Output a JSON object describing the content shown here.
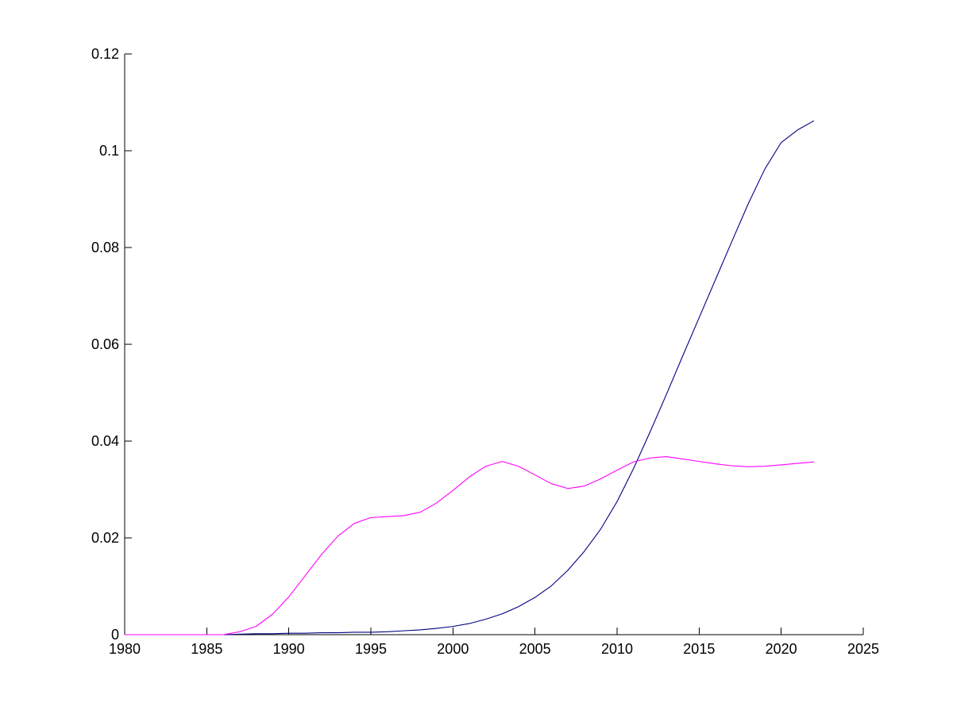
{
  "chart_data": {
    "type": "line",
    "title": "",
    "xlabel": "",
    "ylabel": "",
    "xlim": [
      1980,
      2025
    ],
    "ylim": [
      0,
      0.12
    ],
    "x_ticks": [
      1980,
      1985,
      1990,
      1995,
      2000,
      2005,
      2010,
      2015,
      2020,
      2025
    ],
    "y_ticks": [
      0,
      0.02,
      0.04,
      0.06,
      0.08,
      0.1,
      0.12
    ],
    "x_tick_labels": [
      "1980",
      "1985",
      "1990",
      "1995",
      "2000",
      "2005",
      "2010",
      "2015",
      "2020",
      "2025"
    ],
    "y_tick_labels": [
      "0",
      "0.02",
      "0.04",
      "0.06",
      "0.08",
      "0.1",
      "0.12"
    ],
    "grid": false,
    "legend": "none",
    "x": [
      1980,
      1981,
      1982,
      1983,
      1984,
      1985,
      1986,
      1987,
      1988,
      1989,
      1990,
      1991,
      1992,
      1993,
      1994,
      1995,
      1996,
      1997,
      1998,
      1999,
      2000,
      2001,
      2002,
      2003,
      2004,
      2005,
      2006,
      2007,
      2008,
      2009,
      2010,
      2011,
      2012,
      2013,
      2014,
      2015,
      2016,
      2017,
      2018,
      2019,
      2020,
      2021,
      2022
    ],
    "series": [
      {
        "color": "#000080",
        "values": [
          0,
          0,
          0,
          0,
          0,
          0,
          0,
          0.0001,
          0.0002,
          0.0002,
          0.0003,
          0.0003,
          0.0004,
          0.0004,
          0.0005,
          0.0005,
          0.0006,
          0.0008,
          0.001,
          0.0013,
          0.0017,
          0.0023,
          0.0032,
          0.0043,
          0.0058,
          0.0077,
          0.0101,
          0.0133,
          0.0172,
          0.0218,
          0.0275,
          0.0343,
          0.0418,
          0.0496,
          0.0576,
          0.0655,
          0.0734,
          0.0813,
          0.0891,
          0.0962,
          0.1017,
          0.1043,
          0.1062
        ]
      },
      {
        "color": "#ff00ff",
        "values": [
          0,
          0,
          0,
          0,
          0,
          0,
          0,
          0.0006,
          0.0017,
          0.0042,
          0.0078,
          0.0122,
          0.0166,
          0.0204,
          0.023,
          0.0242,
          0.0244,
          0.0246,
          0.0253,
          0.0272,
          0.0298,
          0.0326,
          0.0348,
          0.0358,
          0.0348,
          0.033,
          0.0312,
          0.0302,
          0.0307,
          0.0322,
          0.034,
          0.0357,
          0.0365,
          0.0368,
          0.0363,
          0.0358,
          0.0353,
          0.0349,
          0.0347,
          0.0348,
          0.0351,
          0.0354,
          0.0357
        ]
      }
    ]
  }
}
